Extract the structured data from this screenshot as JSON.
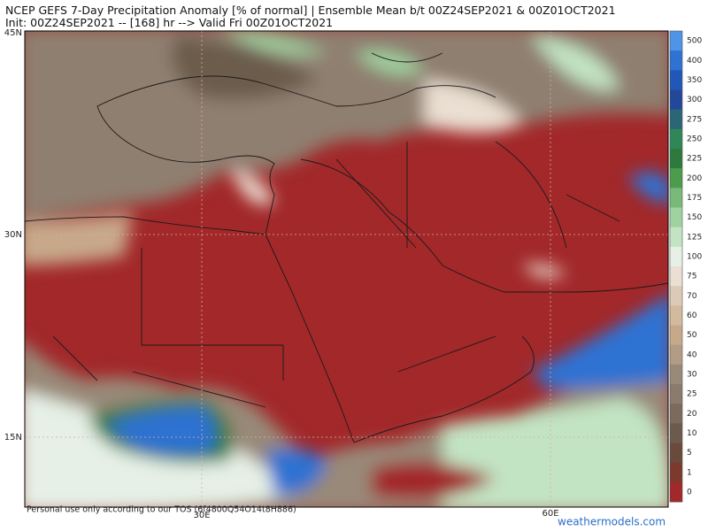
{
  "header": {
    "title": "NCEP GEFS 7-Day Precipitation Anomaly [% of normal] | Ensemble Mean b/t 00Z24SEP2021 & 00Z01OCT2021",
    "subtitle": "Init: 00Z24SEP2021 -- [168] hr --> Valid Fri 00Z01OCT2021"
  },
  "map": {
    "lat_labels": [
      "45N",
      "30N",
      "15N"
    ],
    "lon_labels": [
      "30E",
      "60E"
    ]
  },
  "colorbar": {
    "levels": [
      500,
      400,
      350,
      300,
      275,
      250,
      225,
      200,
      175,
      150,
      125,
      100,
      75,
      70,
      60,
      50,
      40,
      30,
      25,
      20,
      10,
      5,
      1,
      0
    ],
    "colors": [
      "#4f94e6",
      "#2f72d2",
      "#2158b8",
      "#23489a",
      "#2b6676",
      "#2f8659",
      "#2e7a3c",
      "#4c9c4c",
      "#79b979",
      "#a0d1a0",
      "#c2e4c2",
      "#e6f0e6",
      "#eadfd2",
      "#ddcab6",
      "#d3b99e",
      "#c7a98a",
      "#b39c86",
      "#998978",
      "#8a7b6c",
      "#7b6b5c",
      "#6c5b4c",
      "#6a4b3b",
      "#7b3a2b",
      "#a2282a"
    ]
  },
  "footer": {
    "notice": "Personal use only according to our TOS (6f4800Q54O14t8H886)",
    "watermark": "weathermodels.com"
  }
}
